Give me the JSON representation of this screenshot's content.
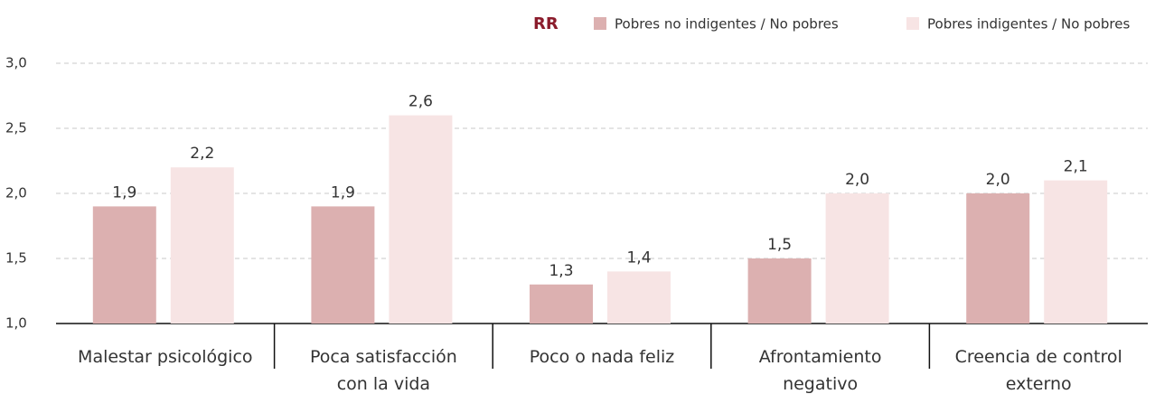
{
  "chart_data": {
    "type": "bar",
    "legend_title": "RR",
    "categories": [
      "Malestar psicológico",
      "Poca satisfacción con la vida",
      "Poco o nada feliz",
      "Afrontamiento negativo",
      "Creencia de control externo"
    ],
    "series": [
      {
        "name": "Pobres no indigentes / No pobres",
        "color": "#dcb0b0",
        "values": [
          1.9,
          1.9,
          1.3,
          1.5,
          2.0
        ],
        "value_labels": [
          "1,9",
          "1,9",
          "1,3",
          "1,5",
          "2,0"
        ]
      },
      {
        "name": "Pobres indigentes / No pobres",
        "color": "#f7e4e4",
        "values": [
          2.2,
          2.6,
          1.4,
          2.0,
          2.1
        ],
        "value_labels": [
          "2,2",
          "2,6",
          "1,4",
          "2,0",
          "2,1"
        ]
      }
    ],
    "ylim": [
      1.0,
      3.0
    ],
    "yticks": [
      {
        "value": 1.0,
        "label": "1,0"
      },
      {
        "value": 1.5,
        "label": "1,5"
      },
      {
        "value": 2.0,
        "label": "2,0"
      },
      {
        "value": 2.5,
        "label": "2,5"
      },
      {
        "value": 3.0,
        "label": "3,0"
      }
    ],
    "grid": true
  }
}
